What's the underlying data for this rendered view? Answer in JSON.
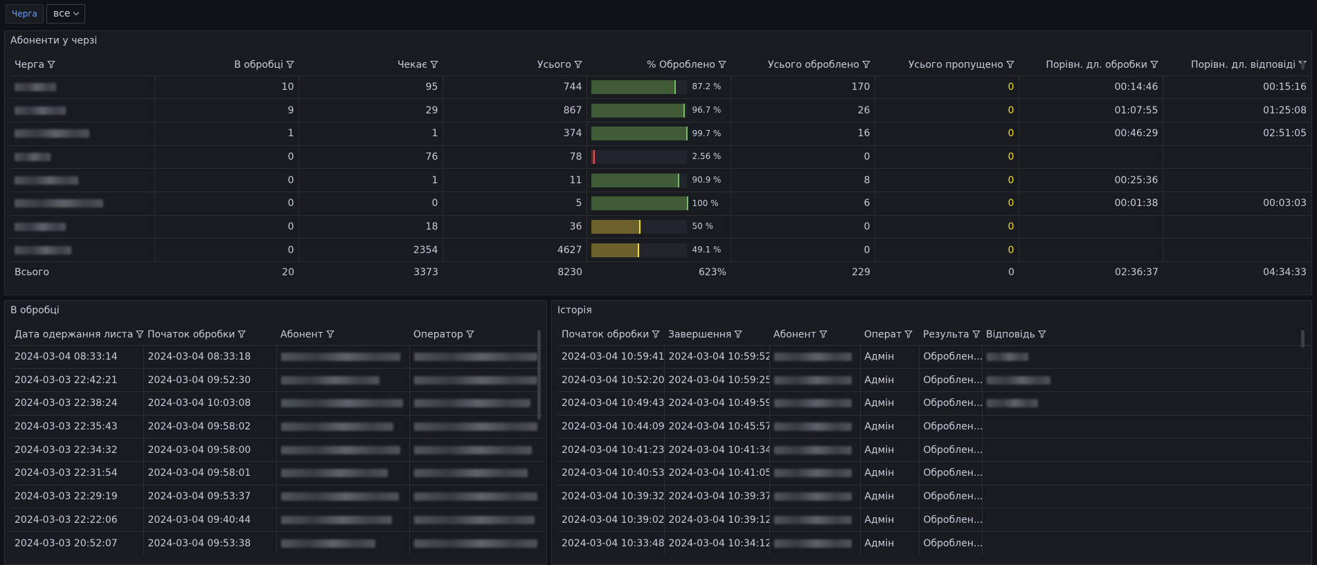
{
  "variable": {
    "label": "Черга",
    "value": "все"
  },
  "queue_panel": {
    "title": "Абоненти у черзі",
    "columns": [
      "Черга",
      "В обробці",
      "Чекає",
      "Усього",
      "% Оброблено",
      "Усього оброблено",
      "Усього пропущено",
      "Порівн. дл. обробки",
      "Порівн. дл. відповіді"
    ],
    "rows": [
      {
        "in_proc": "10",
        "waiting": "95",
        "total": "744",
        "pct": 87.2,
        "pct_label": "87.2 %",
        "processed": "170",
        "skipped": "0",
        "avg_proc": "00:14:46",
        "avg_resp": "00:15:16",
        "status": "green"
      },
      {
        "in_proc": "9",
        "waiting": "29",
        "total": "867",
        "pct": 96.7,
        "pct_label": "96.7 %",
        "processed": "26",
        "skipped": "0",
        "avg_proc": "01:07:55",
        "avg_resp": "01:25:08",
        "status": "green"
      },
      {
        "in_proc": "1",
        "waiting": "1",
        "total": "374",
        "pct": 99.7,
        "pct_label": "99.7 %",
        "processed": "16",
        "skipped": "0",
        "avg_proc": "00:46:29",
        "avg_resp": "02:51:05",
        "status": "green"
      },
      {
        "in_proc": "0",
        "waiting": "76",
        "total": "78",
        "pct": 2.56,
        "pct_label": "2.56 %",
        "processed": "0",
        "skipped": "0",
        "avg_proc": "",
        "avg_resp": "",
        "status": "red"
      },
      {
        "in_proc": "0",
        "waiting": "1",
        "total": "11",
        "pct": 90.9,
        "pct_label": "90.9 %",
        "processed": "8",
        "skipped": "0",
        "avg_proc": "00:25:36",
        "avg_resp": "",
        "status": "green"
      },
      {
        "in_proc": "0",
        "waiting": "0",
        "total": "5",
        "pct": 100,
        "pct_label": "100 %",
        "processed": "6",
        "skipped": "0",
        "avg_proc": "00:01:38",
        "avg_resp": "00:03:03",
        "status": "green"
      },
      {
        "in_proc": "0",
        "waiting": "18",
        "total": "36",
        "pct": 50,
        "pct_label": "50 %",
        "processed": "0",
        "skipped": "0",
        "avg_proc": "",
        "avg_resp": "",
        "status": "yellow"
      },
      {
        "in_proc": "0",
        "waiting": "2354",
        "total": "4627",
        "pct": 49.1,
        "pct_label": "49.1 %",
        "processed": "0",
        "skipped": "0",
        "avg_proc": "",
        "avg_resp": "",
        "status": "yellow"
      }
    ],
    "footer": {
      "label": "Всього",
      "in_proc": "20",
      "waiting": "3373",
      "total": "8230",
      "pct": "623%",
      "processed": "229",
      "skipped": "0",
      "avg_proc": "02:36:37",
      "avg_resp": "04:34:33"
    }
  },
  "processing_panel": {
    "title": "В обробці",
    "columns": [
      "Дата одержання листа",
      "Початок обробки",
      "Абонент",
      "Оператор"
    ],
    "rows": [
      {
        "received": "2024-03-04 08:33:14",
        "start": "2024-03-04 08:33:18"
      },
      {
        "received": "2024-03-03 22:42:21",
        "start": "2024-03-04 09:52:30"
      },
      {
        "received": "2024-03-03 22:38:24",
        "start": "2024-03-04 10:03:08"
      },
      {
        "received": "2024-03-03 22:35:43",
        "start": "2024-03-04 09:58:02"
      },
      {
        "received": "2024-03-03 22:34:32",
        "start": "2024-03-04 09:58:00"
      },
      {
        "received": "2024-03-03 22:31:54",
        "start": "2024-03-04 09:58:01"
      },
      {
        "received": "2024-03-03 22:29:19",
        "start": "2024-03-04 09:53:37"
      },
      {
        "received": "2024-03-03 22:22:06",
        "start": "2024-03-04 09:40:44"
      },
      {
        "received": "2024-03-03 20:52:07",
        "start": "2024-03-04 09:53:38"
      }
    ]
  },
  "history_panel": {
    "title": "Історія",
    "columns": [
      "Початок обробки",
      "Завершення",
      "Абонент",
      "Операт",
      "Результа",
      "Відповідь"
    ],
    "rows": [
      {
        "start": "2024-03-04 10:59:41",
        "end": "2024-03-04 10:59:52",
        "operator": "Адмін",
        "result": "Оброблен..."
      },
      {
        "start": "2024-03-04 10:52:20",
        "end": "2024-03-04 10:59:25",
        "operator": "Адмін",
        "result": "Оброблен..."
      },
      {
        "start": "2024-03-04 10:49:43",
        "end": "2024-03-04 10:49:59",
        "operator": "Адмін",
        "result": "Оброблен..."
      },
      {
        "start": "2024-03-04 10:44:09",
        "end": "2024-03-04 10:45:57",
        "operator": "Адмін",
        "result": "Оброблен..."
      },
      {
        "start": "2024-03-04 10:41:23",
        "end": "2024-03-04 10:41:34",
        "operator": "Адмін",
        "result": "Оброблен..."
      },
      {
        "start": "2024-03-04 10:40:53",
        "end": "2024-03-04 10:41:05",
        "operator": "Адмін",
        "result": "Оброблен..."
      },
      {
        "start": "2024-03-04 10:39:32",
        "end": "2024-03-04 10:39:37",
        "operator": "Адмін",
        "result": "Оброблен..."
      },
      {
        "start": "2024-03-04 10:39:02",
        "end": "2024-03-04 10:39:12",
        "operator": "Адмін",
        "result": "Оброблен..."
      },
      {
        "start": "2024-03-04 10:33:48",
        "end": "2024-03-04 10:34:12",
        "operator": "Адмін",
        "result": "Оброблен..."
      }
    ]
  }
}
